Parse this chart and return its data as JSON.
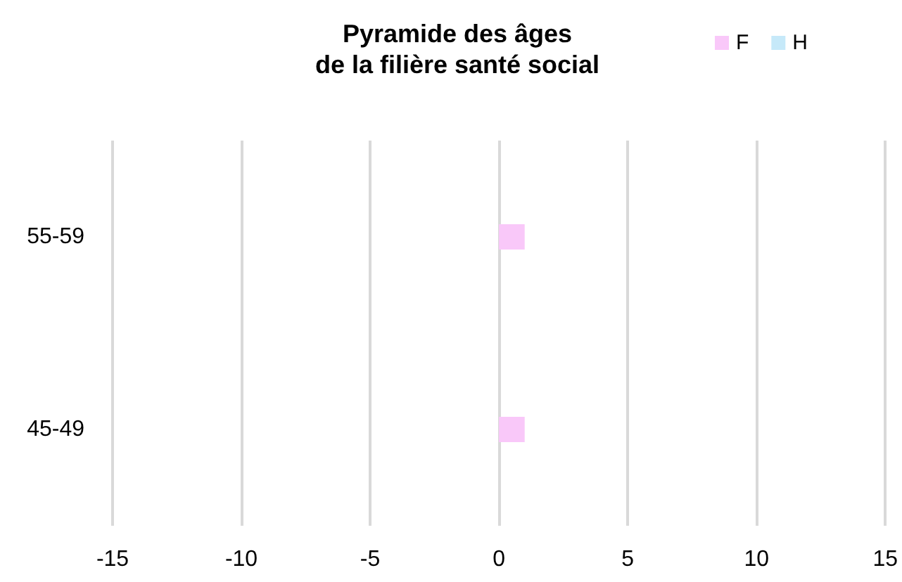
{
  "chart_data": {
    "type": "bar",
    "orientation": "horizontal",
    "title": "Pyramide des âges\nde la filière santé social",
    "categories": [
      "55-59",
      "45-49"
    ],
    "series": [
      {
        "name": "F",
        "color": "#f9c8f9",
        "values": [
          1,
          1
        ]
      },
      {
        "name": "H",
        "color": "#c6e9f9",
        "values": [
          null,
          null
        ]
      }
    ],
    "xlim": [
      -15,
      15
    ],
    "xticks": [
      -15,
      -10,
      -5,
      0,
      5,
      10,
      15
    ],
    "grid": "x",
    "legend": "top right"
  }
}
